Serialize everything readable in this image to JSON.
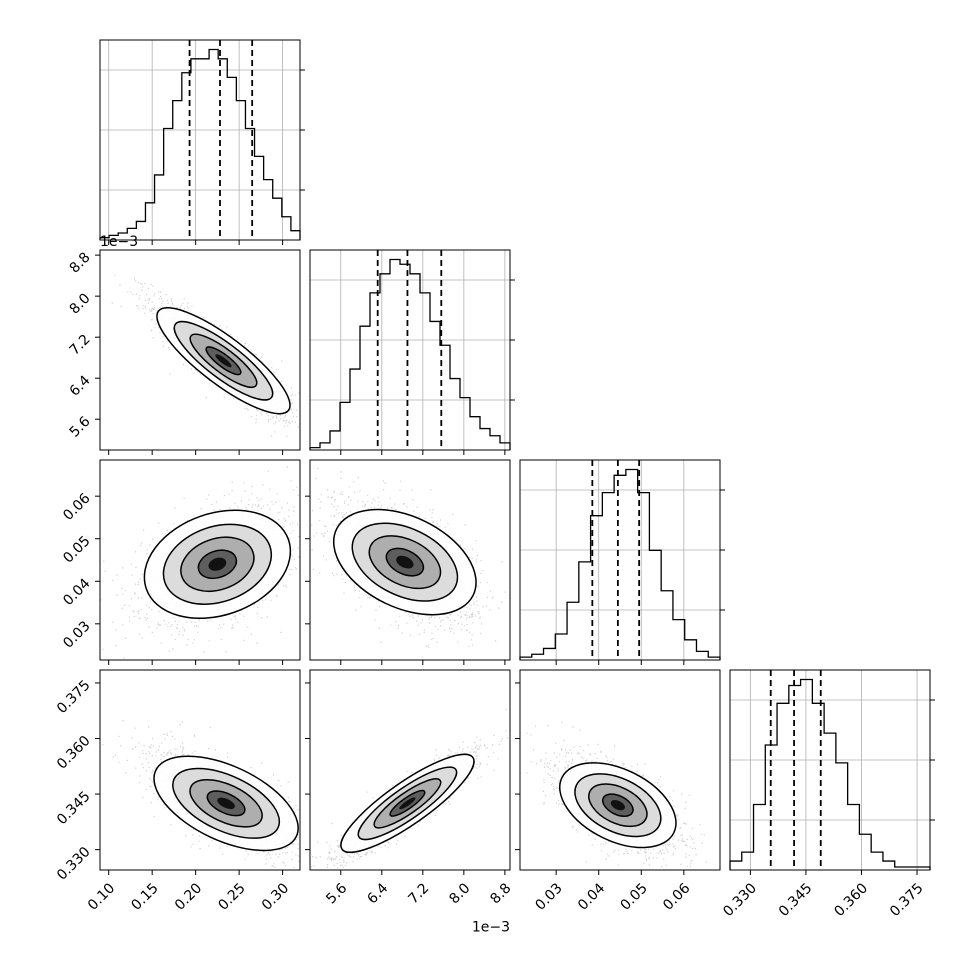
{
  "chart_data": {
    "type": "corner",
    "title": "",
    "grid": true,
    "parameters": [
      {
        "range": [
          0.09,
          0.32
        ],
        "ticks": [
          0.1,
          0.15,
          0.2,
          0.25,
          0.3
        ],
        "tick_labels": [
          "0.10",
          "0.15",
          "0.20",
          "0.25",
          "0.30"
        ],
        "offset_text": "",
        "quantiles": [
          0.193,
          0.228,
          0.265
        ],
        "hist_counts": [
          1,
          2,
          3,
          5,
          8,
          16,
          28,
          48,
          60,
          72,
          78,
          78,
          82,
          78,
          70,
          60,
          48,
          36,
          26,
          18,
          10,
          4
        ]
      },
      {
        "range": [
          5.0,
          8.9
        ],
        "ticks": [
          5.6,
          6.4,
          7.2,
          8.0,
          8.8
        ],
        "tick_labels": [
          "5.6",
          "6.4",
          "7.2",
          "8.0",
          "8.8"
        ],
        "offset_text": "1e−3",
        "quantiles": [
          6.32,
          6.9,
          7.56
        ],
        "hist_counts": [
          1,
          3,
          8,
          20,
          34,
          52,
          66,
          74,
          80,
          78,
          74,
          66,
          54,
          44,
          30,
          22,
          14,
          9,
          6,
          3
        ]
      },
      {
        "range": [
          0.0215,
          0.0685
        ],
        "ticks": [
          0.03,
          0.04,
          0.05,
          0.06
        ],
        "tick_labels": [
          "0.03",
          "0.04",
          "0.05",
          "0.06"
        ],
        "offset_text": "",
        "quantiles": [
          0.0385,
          0.0445,
          0.0495
        ],
        "hist_counts": [
          1,
          2,
          4,
          9,
          20,
          34,
          50,
          58,
          64,
          66,
          58,
          38,
          24,
          14,
          7,
          3,
          1
        ]
      },
      {
        "range": [
          0.3245,
          0.3785
        ],
        "ticks": [
          0.33,
          0.345,
          0.36,
          0.375
        ],
        "tick_labels": [
          "0.330",
          "0.345",
          "0.360",
          "0.375"
        ],
        "offset_text": "",
        "quantiles": [
          0.3355,
          0.3418,
          0.349
        ],
        "hist_counts": [
          3,
          6,
          22,
          42,
          56,
          62,
          64,
          56,
          46,
          36,
          22,
          12,
          6,
          3,
          1,
          1,
          1
        ]
      }
    ],
    "pairs": [
      {
        "x": 0,
        "y": 1,
        "center": [
          0.232,
          6.74
        ],
        "spread": [
          0.032,
          0.46
        ],
        "corr": -0.9
      },
      {
        "x": 0,
        "y": 2,
        "center": [
          0.225,
          0.044
        ],
        "spread": [
          0.035,
          0.0055
        ],
        "corr": 0.45
      },
      {
        "x": 1,
        "y": 2,
        "center": [
          6.85,
          0.0445
        ],
        "spread": [
          0.55,
          0.0058
        ],
        "corr": -0.55
      },
      {
        "x": 0,
        "y": 3,
        "center": [
          0.235,
          0.3425
        ],
        "spread": [
          0.035,
          0.0055
        ],
        "corr": -0.7
      },
      {
        "x": 1,
        "y": 3,
        "center": [
          6.9,
          0.3425
        ],
        "spread": [
          0.55,
          0.0058
        ],
        "corr": 0.92
      },
      {
        "x": 2,
        "y": 3,
        "center": [
          0.0445,
          0.342
        ],
        "spread": [
          0.0055,
          0.0052
        ],
        "corr": -0.6
      }
    ],
    "diag_y_tick_labels": [
      [
        "",
        "",
        ""
      ],
      [
        "",
        "",
        ""
      ],
      [
        "",
        "",
        ""
      ],
      [
        "",
        "",
        ""
      ]
    ]
  }
}
